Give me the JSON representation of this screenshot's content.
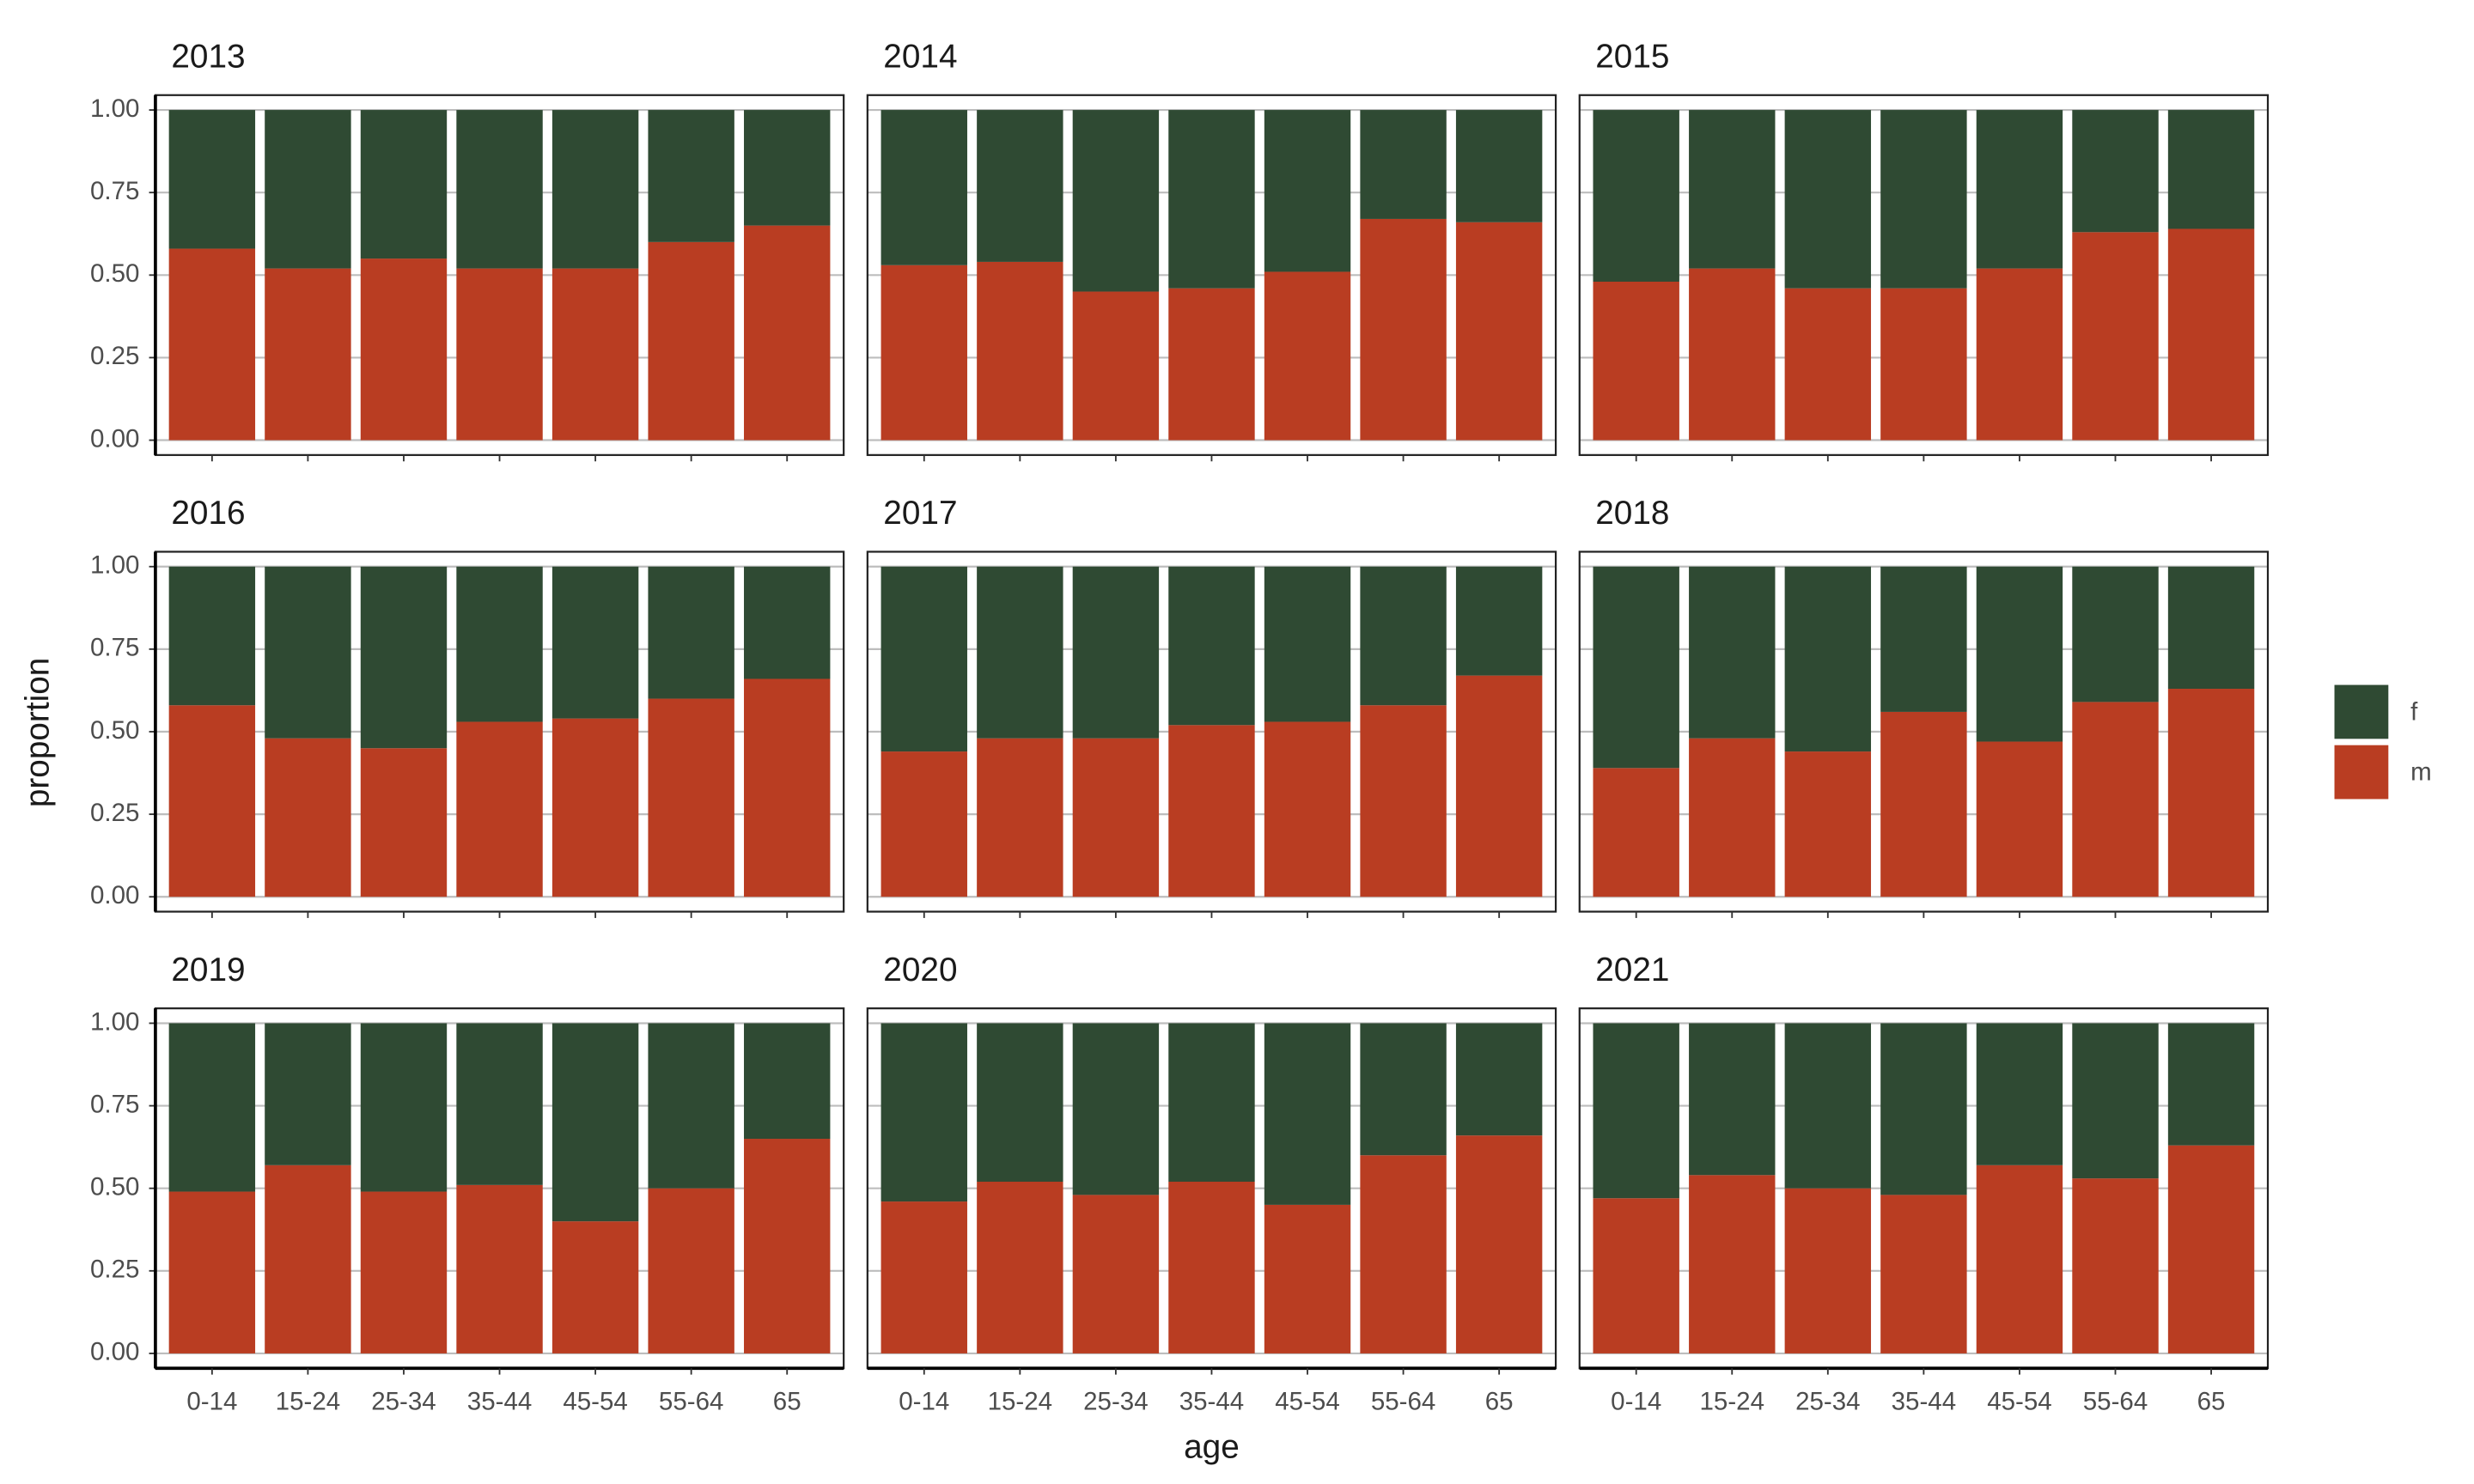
{
  "chart_data": {
    "type": "bar",
    "stacked": true,
    "xlabel": "age",
    "ylabel": "proportion",
    "categories": [
      "0-14",
      "15-24",
      "25-34",
      "35-44",
      "45-54",
      "55-64",
      "65"
    ],
    "ylim": [
      -0.045,
      1.045
    ],
    "yticks": [
      {
        "value": 0,
        "label": "0.00"
      },
      {
        "value": 0.25,
        "label": "0.25"
      },
      {
        "value": 0.5,
        "label": "0.50"
      },
      {
        "value": 0.75,
        "label": "0.75"
      },
      {
        "value": 1,
        "label": "1.00"
      }
    ],
    "grid": true,
    "legend": "right",
    "panels": [
      {
        "title": "2013",
        "series": [
          {
            "name": "f",
            "color": "#2f4a33",
            "values": [
              0.42,
              0.48,
              0.45,
              0.48,
              0.48,
              0.4,
              0.35
            ]
          },
          {
            "name": "m",
            "color": "#b93d22",
            "values": [
              0.58,
              0.52,
              0.55,
              0.52,
              0.52,
              0.6,
              0.65
            ]
          }
        ]
      },
      {
        "title": "2014",
        "series": [
          {
            "name": "f",
            "color": "#2f4a33",
            "values": [
              0.47,
              0.46,
              0.55,
              0.54,
              0.49,
              0.33,
              0.34
            ]
          },
          {
            "name": "m",
            "color": "#b93d22",
            "values": [
              0.53,
              0.54,
              0.45,
              0.46,
              0.51,
              0.67,
              0.66
            ]
          }
        ]
      },
      {
        "title": "2015",
        "series": [
          {
            "name": "f",
            "color": "#2f4a33",
            "values": [
              0.52,
              0.48,
              0.54,
              0.54,
              0.48,
              0.37,
              0.36
            ]
          },
          {
            "name": "m",
            "color": "#b93d22",
            "values": [
              0.48,
              0.52,
              0.46,
              0.46,
              0.52,
              0.63,
              0.64
            ]
          }
        ]
      },
      {
        "title": "2016",
        "series": [
          {
            "name": "f",
            "color": "#2f4a33",
            "values": [
              0.42,
              0.52,
              0.55,
              0.47,
              0.46,
              0.4,
              0.34
            ]
          },
          {
            "name": "m",
            "color": "#b93d22",
            "values": [
              0.58,
              0.48,
              0.45,
              0.53,
              0.54,
              0.6,
              0.66
            ]
          }
        ]
      },
      {
        "title": "2017",
        "series": [
          {
            "name": "f",
            "color": "#2f4a33",
            "values": [
              0.56,
              0.52,
              0.52,
              0.48,
              0.47,
              0.42,
              0.33
            ]
          },
          {
            "name": "m",
            "color": "#b93d22",
            "values": [
              0.44,
              0.48,
              0.48,
              0.52,
              0.53,
              0.58,
              0.67
            ]
          }
        ]
      },
      {
        "title": "2018",
        "series": [
          {
            "name": "f",
            "color": "#2f4a33",
            "values": [
              0.61,
              0.52,
              0.56,
              0.44,
              0.53,
              0.41,
              0.37
            ]
          },
          {
            "name": "m",
            "color": "#b93d22",
            "values": [
              0.39,
              0.48,
              0.44,
              0.56,
              0.47,
              0.59,
              0.63
            ]
          }
        ]
      },
      {
        "title": "2019",
        "series": [
          {
            "name": "f",
            "color": "#2f4a33",
            "values": [
              0.51,
              0.43,
              0.51,
              0.49,
              0.6,
              0.5,
              0.35
            ]
          },
          {
            "name": "m",
            "color": "#b93d22",
            "values": [
              0.49,
              0.57,
              0.49,
              0.51,
              0.4,
              0.5,
              0.65
            ]
          }
        ]
      },
      {
        "title": "2020",
        "series": [
          {
            "name": "f",
            "color": "#2f4a33",
            "values": [
              0.54,
              0.48,
              0.52,
              0.48,
              0.55,
              0.4,
              0.34
            ]
          },
          {
            "name": "m",
            "color": "#b93d22",
            "values": [
              0.46,
              0.52,
              0.48,
              0.52,
              0.45,
              0.6,
              0.66
            ]
          }
        ]
      },
      {
        "title": "2021",
        "series": [
          {
            "name": "f",
            "color": "#2f4a33",
            "values": [
              0.53,
              0.46,
              0.5,
              0.52,
              0.43,
              0.47,
              0.37
            ]
          },
          {
            "name": "m",
            "color": "#b93d22",
            "values": [
              0.47,
              0.54,
              0.5,
              0.48,
              0.57,
              0.53,
              0.63
            ]
          }
        ]
      }
    ]
  }
}
